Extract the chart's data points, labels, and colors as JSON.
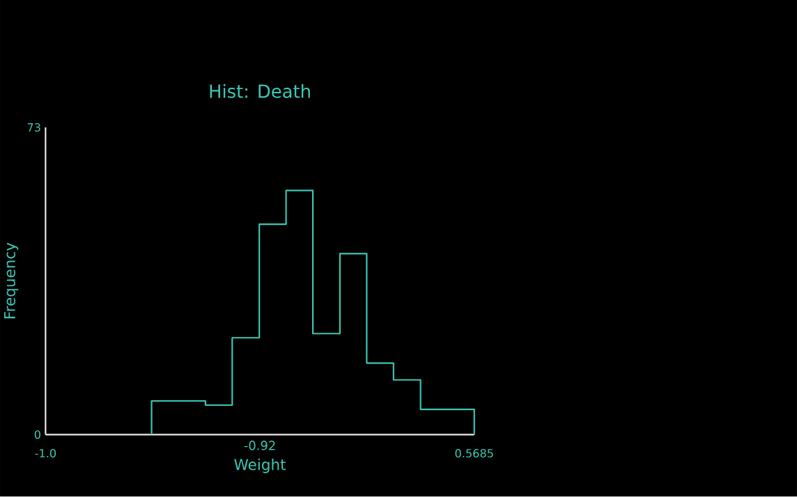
{
  "chart_data": {
    "type": "histogram",
    "title": "Hist:  Death",
    "xlabel": "Weight",
    "ylabel": "Frequency",
    "bins": [
      -0.612,
      -0.514,
      -0.415,
      -0.317,
      -0.218,
      -0.12,
      -0.022,
      0.077,
      0.175,
      0.273,
      0.372,
      0.47,
      0.5685
    ],
    "values": [
      8,
      8,
      7,
      23,
      50,
      58,
      24,
      43,
      17,
      13,
      6,
      6
    ],
    "color": "#3cc8b4",
    "xlim": [
      -1.0,
      0.5685
    ],
    "ylim": [
      0,
      73
    ],
    "xticks": [
      {
        "value": -1.0,
        "label": "-1.0"
      },
      0.5685
    ],
    "yticks": [
      0,
      73
    ],
    "annotations": [
      "-0.92"
    ],
    "grid": false
  }
}
